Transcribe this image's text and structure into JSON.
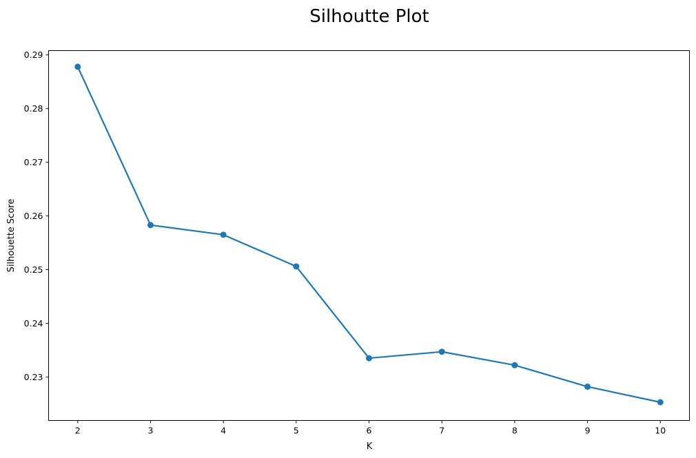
{
  "chart_data": {
    "type": "line",
    "title": "Silhoutte Plot",
    "xlabel": "K",
    "ylabel": "Silhouette Score",
    "x": [
      2,
      3,
      4,
      5,
      6,
      7,
      8,
      9,
      10
    ],
    "series": [
      {
        "values": [
          0.2878,
          0.2583,
          0.2565,
          0.2506,
          0.2335,
          0.2347,
          0.2322,
          0.2282,
          0.2253
        ],
        "color": "#1f77b4",
        "marker": "circle"
      }
    ],
    "xlim": [
      1.6,
      10.4
    ],
    "ylim": [
      0.2219,
      0.2908
    ],
    "xticks": [
      2,
      3,
      4,
      5,
      6,
      7,
      8,
      9,
      10
    ],
    "yticks": [
      0.23,
      0.24,
      0.25,
      0.26,
      0.27,
      0.28,
      0.29
    ],
    "grid": false,
    "legend": "none"
  }
}
